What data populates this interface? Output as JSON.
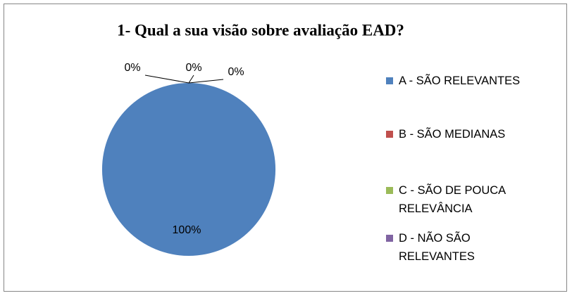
{
  "chart_data": {
    "type": "pie",
    "title": "1- Qual a sua visão sobre avaliação EAD?",
    "categories": [
      "A - SÃO RELEVANTES",
      "B - SÃO MEDIANAS",
      "C - SÃO DE POUCA RELEVÂNCIA",
      "D - NÃO SÃO RELEVANTES"
    ],
    "values": [
      100,
      0,
      0,
      0
    ],
    "value_labels": [
      "100%",
      "0%",
      "0%",
      "0%"
    ],
    "colors": [
      "#4f81bd",
      "#c0504d",
      "#9bbb59",
      "#8064a2"
    ],
    "legend": "right"
  }
}
